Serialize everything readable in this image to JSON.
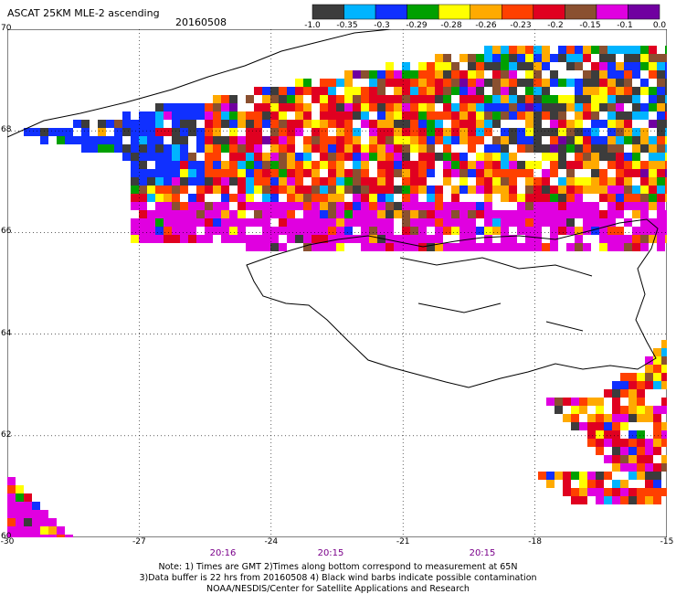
{
  "title": "ASCAT 25KM MLE-2 ascending",
  "date": "20160508",
  "colorbar": {
    "labels": [
      "-1.0",
      "-0.35",
      "-0.3",
      "-0.29",
      "-0.28",
      "-0.26",
      "-0.23",
      "-0.2",
      "-0.15",
      "-0.1",
      "0.0"
    ],
    "colors": [
      "#3c3c3c",
      "#00b4ff",
      "#1030ff",
      "#00a000",
      "#ffff00",
      "#ffaa00",
      "#ff4000",
      "#e00020",
      "#8a5030",
      "#e000e0",
      "#7000a0"
    ]
  },
  "lat_labels": [
    "70",
    "68",
    "66",
    "64",
    "62",
    "60"
  ],
  "lon_labels": [
    "-30",
    "-27",
    "-24",
    "-21",
    "-18",
    "-15"
  ],
  "times": [
    "20:16",
    "20:15",
    "20:15"
  ],
  "notes": [
    "Note: 1) Times are GMT 2)Times along bottom correspond to measurement at 65N",
    "3)Data buffer is 22 hrs from 20160508 4) Black wind barbs indicate possible contamination",
    "NOAA/NESDIS/Center for Satellite Applications and Research"
  ]
}
